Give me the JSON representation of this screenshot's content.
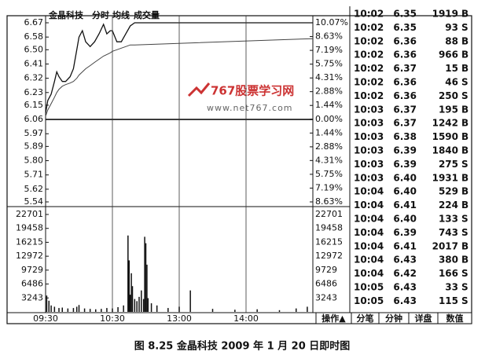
{
  "chart_data": [
    {
      "type": "line",
      "title": "金晶科技",
      "x": [
        0,
        2,
        5,
        8,
        10,
        12,
        15,
        18,
        22,
        25,
        28,
        30,
        33,
        36,
        40,
        44,
        48,
        52,
        55,
        58,
        60,
        64,
        68,
        72,
        76,
        80,
        240
      ],
      "series": [
        {
          "name": "分时",
          "color": "#111111",
          "values": [
            6.1,
            6.18,
            6.22,
            6.3,
            6.36,
            6.33,
            6.3,
            6.3,
            6.33,
            6.38,
            6.5,
            6.58,
            6.62,
            6.55,
            6.52,
            6.55,
            6.6,
            6.66,
            6.6,
            6.62,
            6.62,
            6.55,
            6.55,
            6.6,
            6.65,
            6.67,
            6.67
          ]
        },
        {
          "name": "均线",
          "color": "#444444",
          "values": [
            6.08,
            6.12,
            6.16,
            6.2,
            6.23,
            6.25,
            6.27,
            6.28,
            6.29,
            6.3,
            6.32,
            6.34,
            6.36,
            6.38,
            6.4,
            6.42,
            6.44,
            6.46,
            6.47,
            6.48,
            6.49,
            6.5,
            6.51,
            6.52,
            6.53,
            6.53,
            6.57
          ]
        }
      ],
      "xlim": [
        0,
        240
      ],
      "ylim": [
        5.54,
        6.67
      ],
      "yticks": [
        6.67,
        6.58,
        {
          "value": 6.5,
          "label": "6.50"
        },
        6.41,
        6.32,
        6.23,
        6.15,
        6.06,
        5.97,
        5.89,
        {
          "value": 5.8,
          "label": "5.80"
        },
        5.71,
        5.62,
        5.54
      ],
      "y2lim": [
        -8.63,
        10.07
      ],
      "y2ticks": [
        {
          "value": 10.07,
          "label": "10.07%"
        },
        {
          "value": 8.63,
          "label": "8.63%"
        },
        {
          "value": 7.19,
          "label": "7.19%"
        },
        {
          "value": 5.75,
          "label": "5.75%"
        },
        {
          "value": 4.31,
          "label": "4.31%"
        },
        {
          "value": 2.88,
          "label": "2.88%"
        },
        {
          "value": 1.44,
          "label": "1.44%"
        },
        {
          "value": 0,
          "label": "0.00%"
        },
        {
          "value": -1.44,
          "label": "1.44%"
        },
        {
          "value": -2.88,
          "label": "2.88%"
        },
        {
          "value": -4.31,
          "label": "4.31%"
        },
        {
          "value": -5.75,
          "label": "5.75%"
        },
        {
          "value": -7.19,
          "label": "7.19%"
        },
        {
          "value": -8.63,
          "label": "8.63%"
        }
      ]
    },
    {
      "type": "bar",
      "x": [
        1,
        3,
        5,
        8,
        12,
        15,
        20,
        25,
        28,
        30,
        35,
        40,
        45,
        50,
        55,
        60,
        65,
        70,
        74,
        75,
        76,
        77,
        78,
        80,
        82,
        84,
        86,
        88,
        89,
        90,
        91,
        92,
        95,
        100,
        110,
        120,
        130,
        150,
        170,
        190,
        210,
        225,
        235
      ],
      "series": [
        {
          "name": "成交量",
          "color": "#111111",
          "values": [
            3800,
            2600,
            1500,
            1200,
            900,
            1000,
            800,
            900,
            1200,
            1600,
            800,
            700,
            600,
            700,
            900,
            800,
            1100,
            1500,
            17800,
            12000,
            4000,
            9000,
            6000,
            3000,
            2500,
            3500,
            5000,
            3000,
            17500,
            16000,
            11000,
            3200,
            2000,
            1500,
            900,
            1200,
            5000,
            700,
            500,
            600,
            400,
            800,
            1200
          ]
        }
      ],
      "xlim": [
        0,
        240
      ],
      "xticks": [
        {
          "value": 0,
          "label": "09:30"
        },
        {
          "value": 60,
          "label": "10:30"
        },
        {
          "value": 120,
          "label": "13:00"
        },
        {
          "value": 180,
          "label": "14:00"
        }
      ],
      "ylim": [
        0,
        22701
      ],
      "yticks": [
        22701,
        19458,
        16215,
        12972,
        9729,
        6486,
        3243
      ]
    }
  ],
  "trades": [
    [
      "10:02",
      "6.35",
      "1919",
      "B"
    ],
    [
      "10:02",
      "6.35",
      "93",
      "S"
    ],
    [
      "10:02",
      "6.36",
      "88",
      "B"
    ],
    [
      "10:02",
      "6.36",
      "966",
      "B"
    ],
    [
      "10:02",
      "6.37",
      "15",
      "B"
    ],
    [
      "10:02",
      "6.36",
      "46",
      "S"
    ],
    [
      "10:02",
      "6.36",
      "250",
      "S"
    ],
    [
      "10:03",
      "6.37",
      "195",
      "B"
    ],
    [
      "10:03",
      "6.37",
      "1242",
      "B"
    ],
    [
      "10:03",
      "6.38",
      "1590",
      "B"
    ],
    [
      "10:03",
      "6.39",
      "1840",
      "B"
    ],
    [
      "10:03",
      "6.39",
      "275",
      "S"
    ],
    [
      "10:03",
      "6.40",
      "1931",
      "B"
    ],
    [
      "10:04",
      "6.40",
      "529",
      "B"
    ],
    [
      "10:04",
      "6.41",
      "224",
      "B"
    ],
    [
      "10:04",
      "6.40",
      "133",
      "S"
    ],
    [
      "10:04",
      "6.39",
      "743",
      "S"
    ],
    [
      "10:04",
      "6.41",
      "2017",
      "B"
    ],
    [
      "10:04",
      "6.43",
      "380",
      "B"
    ],
    [
      "10:04",
      "6.42",
      "166",
      "S"
    ],
    [
      "10:05",
      "6.43",
      "33",
      "S"
    ],
    [
      "10:05",
      "6.43",
      "115",
      "S"
    ]
  ],
  "tabs": [
    "操作▲",
    "分笔",
    "分钟",
    "详盘",
    "数值"
  ],
  "watermark": {
    "name": "767股票学习网",
    "url": "www.net767.com"
  },
  "caption": "图 8.25   金晶科技 2009 年 1 月 20 日即时图"
}
